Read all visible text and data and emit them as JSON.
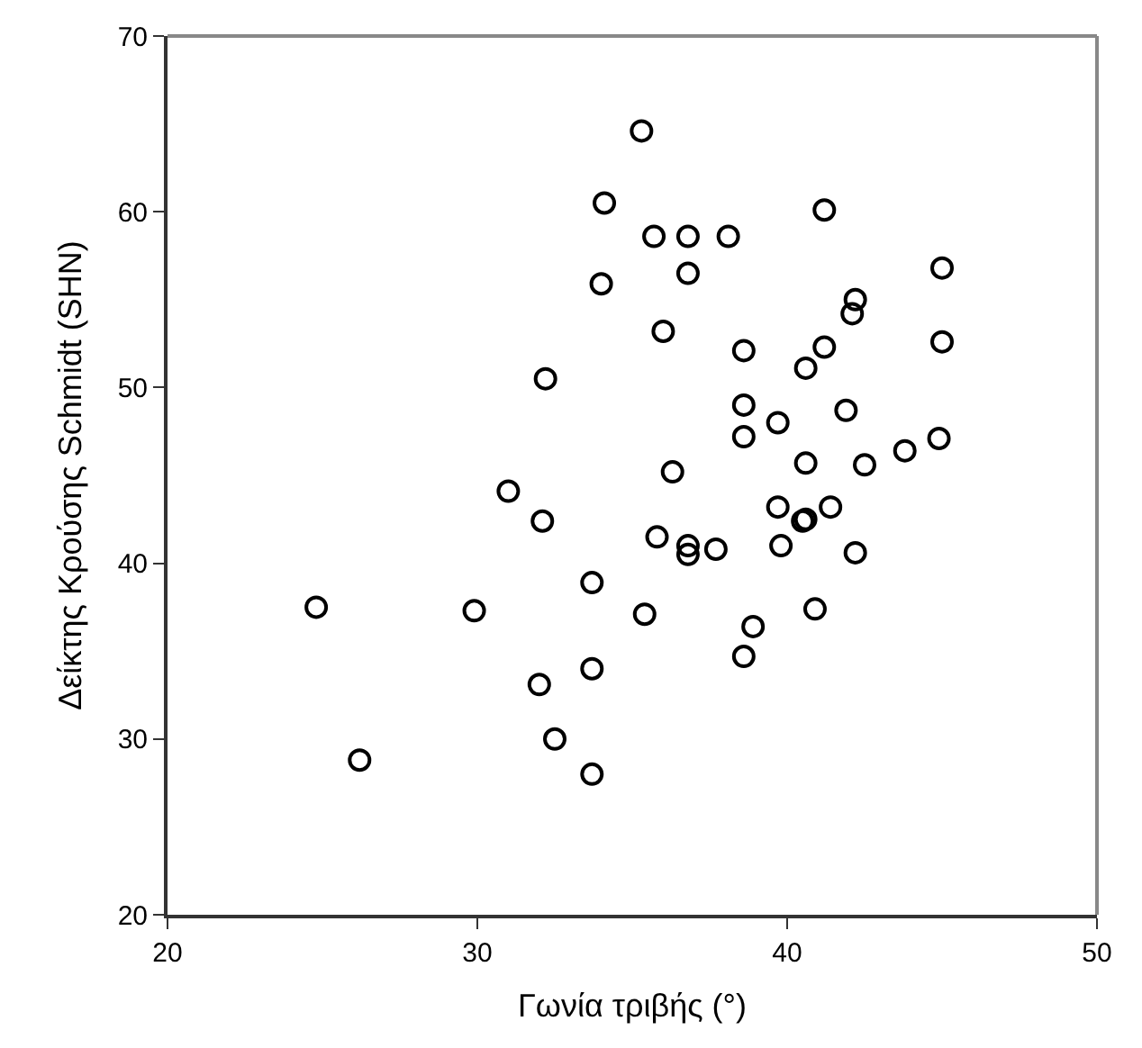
{
  "chart_data": {
    "type": "scatter",
    "xlabel": "Γωνία τριβής (°)",
    "ylabel": "Δείκτης Κρούσης Schmidt (SHN)",
    "xlim": [
      20,
      50
    ],
    "xticks": [
      20,
      30,
      40,
      50
    ],
    "ylim": [
      20,
      70
    ],
    "yticks": [
      20,
      30,
      40,
      50,
      60,
      70
    ],
    "marker": "circle",
    "series": [
      {
        "color": "#000000",
        "x": [
          35.3,
          34.1,
          35.7,
          36.8,
          38.1,
          36.8,
          34.0,
          36.0,
          32.2,
          36.3,
          31.0,
          41.2,
          45.0,
          42.2,
          42.1,
          38.6,
          41.2,
          40.6,
          45.0,
          38.6,
          39.7,
          41.9,
          38.6,
          44.9,
          43.8,
          40.6,
          42.5,
          32.1,
          35.8,
          24.8,
          29.9,
          33.7,
          35.4,
          33.7,
          32.0,
          32.5,
          26.2,
          33.7,
          36.8,
          36.8,
          37.7,
          39.7,
          40.5,
          40.6,
          41.4,
          39.8,
          42.2,
          40.9,
          38.9,
          38.6
        ],
        "values": [
          64.6,
          60.5,
          58.6,
          58.6,
          58.6,
          56.5,
          55.9,
          53.2,
          50.5,
          45.2,
          44.1,
          60.1,
          56.8,
          55.0,
          54.2,
          52.1,
          52.3,
          51.1,
          52.6,
          49.0,
          48.0,
          48.7,
          47.2,
          47.1,
          46.4,
          45.7,
          45.6,
          42.4,
          41.5,
          37.5,
          37.3,
          38.9,
          37.1,
          34.0,
          33.1,
          30.0,
          28.8,
          28.0,
          41.0,
          40.5,
          40.8,
          43.2,
          42.4,
          42.5,
          43.2,
          41.0,
          40.6,
          37.4,
          36.4,
          34.7
        ]
      }
    ]
  }
}
